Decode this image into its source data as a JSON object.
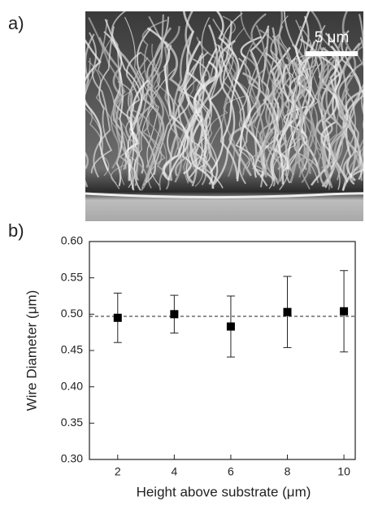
{
  "panel_a": {
    "label": "a)",
    "scale_bar": "5 μm"
  },
  "chart_data": {
    "type": "scatter",
    "panel_label": "b)",
    "x_label": "Height above substrate (μm)",
    "y_label": "Wire Diameter (μm)",
    "x": [
      2,
      4,
      6,
      8,
      10
    ],
    "values": [
      0.495,
      0.5,
      0.483,
      0.503,
      0.504
    ],
    "errors": [
      0.034,
      0.026,
      0.042,
      0.049,
      0.056
    ],
    "color": "#000000",
    "reference_line": 0.497,
    "xlim": [
      1,
      10.4
    ],
    "ylim": [
      0.3,
      0.6
    ],
    "xticks": [
      2,
      4,
      6,
      8,
      10
    ],
    "yticks": [
      {
        "value": 0.3,
        "label": "0.30"
      },
      {
        "value": 0.35,
        "label": "0.35"
      },
      {
        "value": 0.4,
        "label": "0.40"
      },
      {
        "value": 0.45,
        "label": "0.45"
      },
      {
        "value": 0.5,
        "label": "0.50"
      },
      {
        "value": 0.55,
        "label": "0.55"
      },
      {
        "value": 0.6,
        "label": "0.60"
      }
    ]
  }
}
